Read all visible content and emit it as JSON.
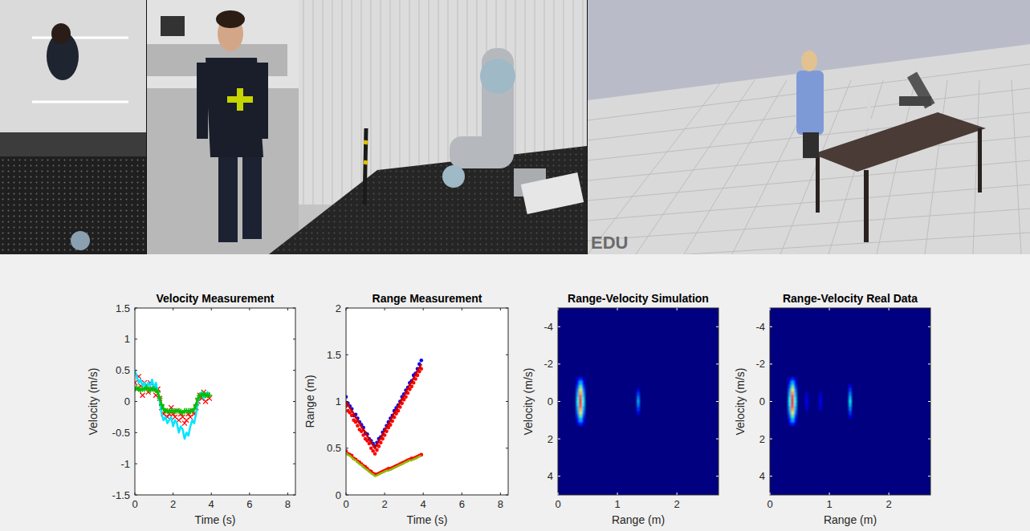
{
  "video": {
    "watermark": "EDU"
  },
  "chart_data": [
    {
      "type": "scatter",
      "title": "Velocity Measurement",
      "xlabel": "Time (s)",
      "ylabel": "Velocity (m/s)",
      "xlim": [
        0,
        8.4
      ],
      "xticks": [
        0,
        2,
        4,
        6,
        8
      ],
      "ylim": [
        -1.5,
        1.5
      ],
      "yticks": [
        -1.5,
        -1,
        -0.5,
        0,
        0.5,
        1,
        1.5
      ],
      "x": [
        0,
        0.1,
        0.2,
        0.3,
        0.4,
        0.5,
        0.6,
        0.7,
        0.8,
        0.9,
        1,
        1.1,
        1.2,
        1.3,
        1.4,
        1.5,
        1.6,
        1.7,
        1.8,
        1.9,
        2,
        2.1,
        2.2,
        2.3,
        2.4,
        2.5,
        2.6,
        2.7,
        2.8,
        2.9,
        3,
        3.1,
        3.2,
        3.3,
        3.4,
        3.5,
        3.6,
        3.7,
        3.8,
        3.9
      ],
      "series": [
        {
          "type": "scatter",
          "color": "#ff0000",
          "marker": "x",
          "values": [
            0.3,
            0.2,
            0.4,
            0.25,
            0.1,
            0.3,
            0.25,
            0.15,
            0.3,
            0.2,
            0.25,
            0.1,
            0.2,
            0.05,
            -0.1,
            -0.2,
            -0.15,
            -0.25,
            -0.2,
            -0.1,
            -0.2,
            -0.25,
            -0.15,
            -0.3,
            -0.2,
            -0.25,
            -0.35,
            -0.3,
            -0.2,
            -0.25,
            -0.15,
            -0.2,
            -0.1,
            0.0,
            0.1,
            0.05,
            0.15,
            0.0,
            0.1,
            0.05
          ]
        },
        {
          "type": "line",
          "color": "#00e5ff",
          "line_style": "solid",
          "values": [
            0.5,
            0.4,
            0.3,
            0.35,
            0.25,
            0.3,
            0.2,
            0.3,
            0.25,
            0.35,
            0.2,
            0.3,
            0.15,
            0.0,
            -0.2,
            -0.3,
            -0.25,
            -0.35,
            -0.3,
            -0.25,
            -0.4,
            -0.3,
            -0.35,
            -0.5,
            -0.4,
            -0.45,
            -0.6,
            -0.5,
            -0.55,
            -0.4,
            -0.3,
            -0.35,
            -0.2,
            0.0,
            0.1,
            0.15,
            0.05,
            0.1,
            0.15,
            0.1
          ]
        },
        {
          "type": "line",
          "color": "#00c000",
          "line_style": "solid",
          "marker": "plus",
          "values": [
            0.2,
            0.22,
            0.2,
            0.18,
            0.2,
            0.2,
            0.22,
            0.2,
            0.18,
            0.2,
            0.2,
            0.18,
            0.15,
            0.05,
            -0.05,
            -0.12,
            -0.15,
            -0.15,
            -0.16,
            -0.15,
            -0.15,
            -0.16,
            -0.15,
            -0.15,
            -0.16,
            -0.18,
            -0.15,
            -0.15,
            -0.15,
            -0.16,
            -0.15,
            -0.12,
            -0.05,
            0.05,
            0.1,
            0.1,
            0.12,
            0.1,
            0.1,
            0.1
          ]
        }
      ]
    },
    {
      "type": "scatter",
      "title": "Range Measurement",
      "xlabel": "Time (s)",
      "ylabel": "Range (m)",
      "xlim": [
        0,
        8.4
      ],
      "xticks": [
        0,
        2,
        4,
        6,
        8
      ],
      "ylim": [
        0,
        2
      ],
      "yticks": [
        0,
        0.5,
        1,
        1.5,
        2
      ],
      "x": [
        0,
        0.1,
        0.2,
        0.3,
        0.4,
        0.5,
        0.6,
        0.7,
        0.8,
        0.9,
        1,
        1.1,
        1.2,
        1.3,
        1.4,
        1.5,
        1.6,
        1.7,
        1.8,
        1.9,
        2,
        2.1,
        2.2,
        2.3,
        2.4,
        2.5,
        2.6,
        2.7,
        2.8,
        2.9,
        3,
        3.1,
        3.2,
        3.3,
        3.4,
        3.5,
        3.6,
        3.7,
        3.8,
        3.9
      ],
      "series": [
        {
          "type": "scatter",
          "color": "#ff0000",
          "marker": "circle",
          "values": [
            0.47,
            0.44,
            0.43,
            0.42,
            0.39,
            0.38,
            0.36,
            0.35,
            0.33,
            0.31,
            0.3,
            0.28,
            0.26,
            0.25,
            0.23,
            0.22,
            0.22,
            0.23,
            0.24,
            0.25,
            0.26,
            0.27,
            0.28,
            0.28,
            0.29,
            0.3,
            0.31,
            0.32,
            0.33,
            0.34,
            0.35,
            0.36,
            0.37,
            0.38,
            0.39,
            0.39,
            0.4,
            0.41,
            0.42,
            0.43
          ]
        },
        {
          "type": "line",
          "color": "#8cc000",
          "line_style": "solid",
          "values": [
            0.45,
            0.43,
            0.42,
            0.4,
            0.38,
            0.37,
            0.35,
            0.33,
            0.32,
            0.3,
            0.28,
            0.27,
            0.25,
            0.23,
            0.22,
            0.2,
            0.21,
            0.22,
            0.23,
            0.24,
            0.25,
            0.26,
            0.26,
            0.27,
            0.28,
            0.29,
            0.3,
            0.31,
            0.32,
            0.33,
            0.34,
            0.35,
            0.36,
            0.37,
            0.37,
            0.38,
            0.39,
            0.4,
            0.41,
            0.42
          ]
        },
        {
          "type": "scatter",
          "color": "#0000ff",
          "marker": "circle",
          "values": [
            1.05,
            0.98,
            0.95,
            0.92,
            0.85,
            0.86,
            0.82,
            0.78,
            0.75,
            0.72,
            0.66,
            0.65,
            0.6,
            0.58,
            0.55,
            0.52,
            0.56,
            0.6,
            0.62,
            0.67,
            0.7,
            0.74,
            0.78,
            0.82,
            0.85,
            0.9,
            0.93,
            0.96,
            1.0,
            1.05,
            1.08,
            1.12,
            1.15,
            1.2,
            1.22,
            1.28,
            1.3,
            1.35,
            1.4,
            1.44
          ]
        },
        {
          "type": "scatter",
          "color": "#ff0000",
          "marker": "circle",
          "values": [
            0.95,
            0.9,
            0.88,
            0.85,
            0.8,
            0.78,
            0.74,
            0.7,
            0.68,
            0.64,
            0.6,
            0.58,
            0.55,
            0.5,
            0.47,
            0.44,
            0.48,
            0.52,
            0.56,
            0.6,
            0.64,
            0.68,
            0.72,
            0.75,
            0.79,
            0.83,
            0.87,
            0.9,
            0.94,
            0.98,
            1.02,
            1.05,
            1.09,
            1.13,
            1.16,
            1.2,
            1.24,
            1.28,
            1.32,
            1.35
          ]
        },
        {
          "type": "line",
          "color": "#c00000",
          "line_style": "solid",
          "values": [
            1.0,
            0.97,
            0.93,
            0.9,
            0.87,
            0.83,
            0.8,
            0.77,
            0.73,
            0.7,
            0.67,
            0.63,
            0.6,
            0.57,
            0.53,
            0.5,
            0.54,
            0.58,
            0.61,
            0.65,
            0.69,
            0.73,
            0.76,
            0.8,
            0.84,
            0.88,
            0.91,
            0.95,
            0.99,
            1.03,
            1.06,
            1.1,
            1.14,
            1.18,
            1.21,
            1.25,
            1.29,
            1.33,
            1.36,
            1.4
          ]
        }
      ]
    },
    {
      "type": "heatmap",
      "title": "Range-Velocity Simulation",
      "xlabel": "Range (m)",
      "ylabel": "Velocity (m/s)",
      "xlim": [
        0,
        2.7
      ],
      "xticks": [
        0,
        1,
        2
      ],
      "ylim": [
        5,
        -5
      ],
      "yticks": [
        -4,
        -2,
        0,
        2,
        4
      ],
      "color_range": [
        0,
        1
      ],
      "cell_width": 0.05,
      "cell_height": 0.2,
      "cells": [
        {
          "x": 0.33,
          "y": -1.2,
          "value": 0.08
        },
        {
          "x": 0.33,
          "y": -1,
          "value": 0.12
        },
        {
          "x": 0.33,
          "y": -0.8,
          "value": 0.18
        },
        {
          "x": 0.33,
          "y": -0.6,
          "value": 0.25
        },
        {
          "x": 0.33,
          "y": -0.4,
          "value": 0.3
        },
        {
          "x": 0.33,
          "y": -0.2,
          "value": 0.35
        },
        {
          "x": 0.33,
          "y": 0,
          "value": 0.38
        },
        {
          "x": 0.33,
          "y": 0.2,
          "value": 0.35
        },
        {
          "x": 0.33,
          "y": 0.4,
          "value": 0.3
        },
        {
          "x": 0.33,
          "y": 0.6,
          "value": 0.25
        },
        {
          "x": 0.33,
          "y": 0.8,
          "value": 0.18
        },
        {
          "x": 0.33,
          "y": 1,
          "value": 0.12
        },
        {
          "x": 0.33,
          "y": 1.2,
          "value": 0.08
        },
        {
          "x": 0.38,
          "y": -1.2,
          "value": 0.15
        },
        {
          "x": 0.38,
          "y": -1,
          "value": 0.3
        },
        {
          "x": 0.38,
          "y": -0.8,
          "value": 0.45
        },
        {
          "x": 0.38,
          "y": -0.6,
          "value": 0.6
        },
        {
          "x": 0.38,
          "y": -0.4,
          "value": 0.7
        },
        {
          "x": 0.38,
          "y": -0.2,
          "value": 0.8
        },
        {
          "x": 0.38,
          "y": 0,
          "value": 0.85
        },
        {
          "x": 0.38,
          "y": 0.2,
          "value": 0.8
        },
        {
          "x": 0.38,
          "y": 0.4,
          "value": 0.7
        },
        {
          "x": 0.38,
          "y": 0.6,
          "value": 0.6
        },
        {
          "x": 0.38,
          "y": 0.8,
          "value": 0.45
        },
        {
          "x": 0.38,
          "y": 1,
          "value": 0.3
        },
        {
          "x": 0.38,
          "y": 1.2,
          "value": 0.15
        },
        {
          "x": 0.43,
          "y": -1.2,
          "value": 0.08
        },
        {
          "x": 0.43,
          "y": -1,
          "value": 0.12
        },
        {
          "x": 0.43,
          "y": -0.8,
          "value": 0.18
        },
        {
          "x": 0.43,
          "y": -0.6,
          "value": 0.25
        },
        {
          "x": 0.43,
          "y": -0.4,
          "value": 0.3
        },
        {
          "x": 0.43,
          "y": -0.2,
          "value": 0.35
        },
        {
          "x": 0.43,
          "y": 0,
          "value": 0.38
        },
        {
          "x": 0.43,
          "y": 0.2,
          "value": 0.35
        },
        {
          "x": 0.43,
          "y": 0.4,
          "value": 0.3
        },
        {
          "x": 0.43,
          "y": 0.6,
          "value": 0.25
        },
        {
          "x": 0.43,
          "y": 0.8,
          "value": 0.18
        },
        {
          "x": 0.43,
          "y": 1,
          "value": 0.12
        },
        {
          "x": 0.43,
          "y": 1.2,
          "value": 0.08
        },
        {
          "x": 1.35,
          "y": -0.6,
          "value": 0.12
        },
        {
          "x": 1.35,
          "y": -0.4,
          "value": 0.18
        },
        {
          "x": 1.35,
          "y": -0.2,
          "value": 0.25
        },
        {
          "x": 1.35,
          "y": 0,
          "value": 0.3
        },
        {
          "x": 1.35,
          "y": 0.2,
          "value": 0.25
        },
        {
          "x": 1.35,
          "y": 0.4,
          "value": 0.18
        },
        {
          "x": 1.35,
          "y": 0.6,
          "value": 0.12
        }
      ]
    },
    {
      "type": "heatmap",
      "title": "Range-Velocity Real Data",
      "xlabel": "Range (m)",
      "ylabel": "Velocity (m/s)",
      "xlim": [
        0,
        2.7
      ],
      "xticks": [
        0,
        1,
        2
      ],
      "ylim": [
        5,
        -5
      ],
      "yticks": [
        -4,
        -2,
        0,
        2,
        4
      ],
      "color_range": [
        0,
        1
      ],
      "cell_width": 0.05,
      "cell_height": 0.2,
      "cells": [
        {
          "x": 0.33,
          "y": -1.2,
          "value": 0.08
        },
        {
          "x": 0.33,
          "y": -1,
          "value": 0.12
        },
        {
          "x": 0.33,
          "y": -0.8,
          "value": 0.18
        },
        {
          "x": 0.33,
          "y": -0.6,
          "value": 0.25
        },
        {
          "x": 0.33,
          "y": -0.4,
          "value": 0.3
        },
        {
          "x": 0.33,
          "y": -0.2,
          "value": 0.35
        },
        {
          "x": 0.33,
          "y": 0,
          "value": 0.38
        },
        {
          "x": 0.33,
          "y": 0.2,
          "value": 0.35
        },
        {
          "x": 0.33,
          "y": 0.4,
          "value": 0.3
        },
        {
          "x": 0.33,
          "y": 0.6,
          "value": 0.25
        },
        {
          "x": 0.33,
          "y": 0.8,
          "value": 0.18
        },
        {
          "x": 0.33,
          "y": 1,
          "value": 0.12
        },
        {
          "x": 0.33,
          "y": 1.2,
          "value": 0.08
        },
        {
          "x": 0.38,
          "y": -1.2,
          "value": 0.15
        },
        {
          "x": 0.38,
          "y": -1,
          "value": 0.3
        },
        {
          "x": 0.38,
          "y": -0.8,
          "value": 0.45
        },
        {
          "x": 0.38,
          "y": -0.6,
          "value": 0.6
        },
        {
          "x": 0.38,
          "y": -0.4,
          "value": 0.72
        },
        {
          "x": 0.38,
          "y": -0.2,
          "value": 0.82
        },
        {
          "x": 0.38,
          "y": 0,
          "value": 0.88
        },
        {
          "x": 0.38,
          "y": 0.2,
          "value": 0.82
        },
        {
          "x": 0.38,
          "y": 0.4,
          "value": 0.72
        },
        {
          "x": 0.38,
          "y": 0.6,
          "value": 0.6
        },
        {
          "x": 0.38,
          "y": 0.8,
          "value": 0.45
        },
        {
          "x": 0.38,
          "y": 1,
          "value": 0.3
        },
        {
          "x": 0.38,
          "y": 1.2,
          "value": 0.15
        },
        {
          "x": 0.43,
          "y": -1.2,
          "value": 0.08
        },
        {
          "x": 0.43,
          "y": -1,
          "value": 0.12
        },
        {
          "x": 0.43,
          "y": -0.8,
          "value": 0.18
        },
        {
          "x": 0.43,
          "y": -0.6,
          "value": 0.25
        },
        {
          "x": 0.43,
          "y": -0.4,
          "value": 0.3
        },
        {
          "x": 0.43,
          "y": -0.2,
          "value": 0.35
        },
        {
          "x": 0.43,
          "y": 0,
          "value": 0.38
        },
        {
          "x": 0.43,
          "y": 0.2,
          "value": 0.35
        },
        {
          "x": 0.43,
          "y": 0.4,
          "value": 0.3
        },
        {
          "x": 0.43,
          "y": 0.6,
          "value": 0.25
        },
        {
          "x": 0.43,
          "y": 0.8,
          "value": 0.18
        },
        {
          "x": 0.43,
          "y": 1,
          "value": 0.12
        },
        {
          "x": 0.43,
          "y": 1.2,
          "value": 0.08
        },
        {
          "x": 0.62,
          "y": -0.4,
          "value": 0.08
        },
        {
          "x": 0.62,
          "y": -0.2,
          "value": 0.1
        },
        {
          "x": 0.62,
          "y": 0,
          "value": 0.12
        },
        {
          "x": 0.62,
          "y": 0.2,
          "value": 0.1
        },
        {
          "x": 0.62,
          "y": 0.4,
          "value": 0.08
        },
        {
          "x": 0.85,
          "y": -0.4,
          "value": 0.08
        },
        {
          "x": 0.85,
          "y": -0.2,
          "value": 0.1
        },
        {
          "x": 0.85,
          "y": 0,
          "value": 0.12
        },
        {
          "x": 0.85,
          "y": 0.2,
          "value": 0.1
        },
        {
          "x": 0.85,
          "y": 0.4,
          "value": 0.08
        },
        {
          "x": 1.35,
          "y": -0.8,
          "value": 0.12
        },
        {
          "x": 1.35,
          "y": -0.6,
          "value": 0.18
        },
        {
          "x": 1.35,
          "y": -0.4,
          "value": 0.25
        },
        {
          "x": 1.35,
          "y": -0.2,
          "value": 0.32
        },
        {
          "x": 1.35,
          "y": 0,
          "value": 0.38
        },
        {
          "x": 1.35,
          "y": 0.2,
          "value": 0.32
        },
        {
          "x": 1.35,
          "y": 0.4,
          "value": 0.25
        },
        {
          "x": 1.35,
          "y": 0.6,
          "value": 0.18
        },
        {
          "x": 1.35,
          "y": 0.8,
          "value": 0.12
        }
      ]
    }
  ]
}
